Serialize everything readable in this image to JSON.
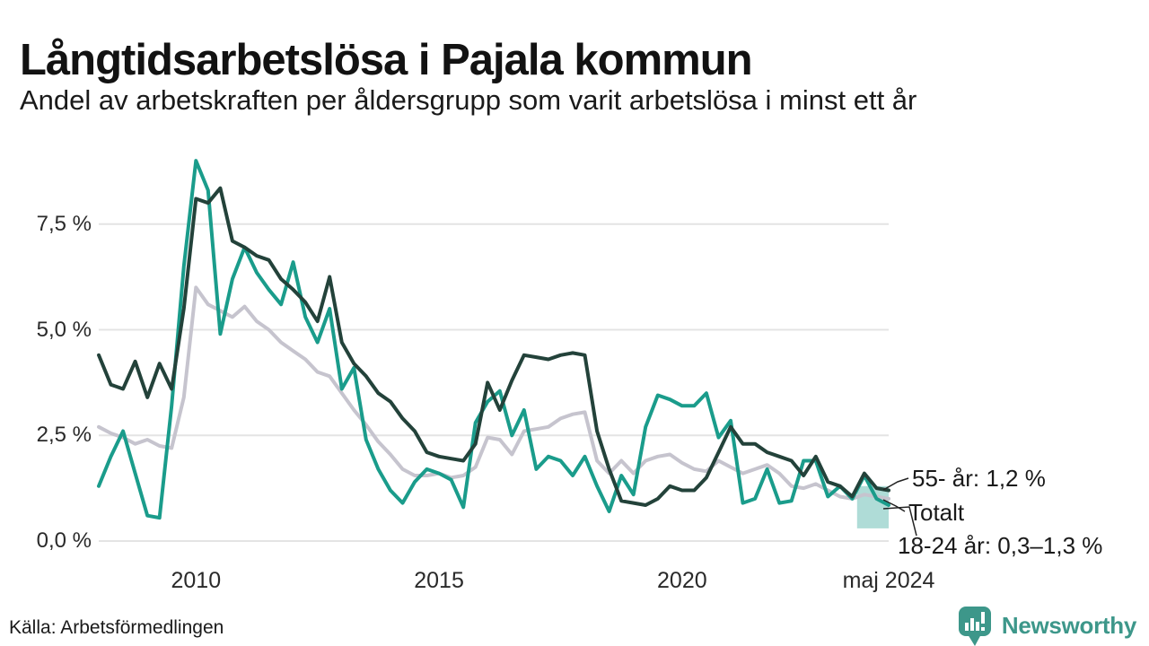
{
  "header": {
    "title": "Långtidsarbetslösa i Pajala kommun",
    "subtitle": "Andel av arbetskraften per åldersgrupp som varit arbetslösa i minst ett år"
  },
  "footer": {
    "source": "Källa: Arbetsförmedlingen",
    "logo": {
      "text": "Newsworthy",
      "icon": "bar-chart-speech-bubble-icon",
      "color": "#3d978a"
    }
  },
  "colors": {
    "accent_teal": "#1a9c8b",
    "dark_green": "#23423a",
    "gray": "#c6c4ce",
    "gridline": "#e4e4e4",
    "band_fill": "#1a9c8b"
  },
  "chart_data": {
    "type": "line",
    "title": "Långtidsarbetslösa i Pajala kommun",
    "subtitle": "Andel av arbetskraften per åldersgrupp som varit arbetslösa i minst ett år",
    "xlabel": "",
    "ylabel": "",
    "grid": "horizontal",
    "legend_position": "end-of-line-annotations",
    "xlim": [
      2008.0,
      2024.25
    ],
    "ylim": [
      0,
      9.3
    ],
    "x_start": 2008.0,
    "x_step": 0.25,
    "x_unit": "year (quarterly samples, monthly series in original)",
    "y_unit": "percent of labour force",
    "yticks": [
      {
        "value": 0,
        "label": "0,0 %"
      },
      {
        "value": 2.5,
        "label": "2,5 %"
      },
      {
        "value": 5,
        "label": "5,0 %"
      },
      {
        "value": 7.5,
        "label": "7,5 %"
      }
    ],
    "xticks": [
      {
        "value": 2010,
        "label": "2010"
      },
      {
        "value": 2015,
        "label": "2015"
      },
      {
        "value": 2020,
        "label": "2020"
      },
      {
        "value": 2024.25,
        "label": "maj 2024"
      }
    ],
    "series": [
      {
        "id": "totalt",
        "name": "Totalt",
        "color": "#c6c4ce",
        "values": [
          2.7,
          2.55,
          2.45,
          2.3,
          2.4,
          2.25,
          2.2,
          3.4,
          6.0,
          5.6,
          5.45,
          5.3,
          5.55,
          5.2,
          5.0,
          4.7,
          4.5,
          4.3,
          4.0,
          3.9,
          3.5,
          3.1,
          2.75,
          2.35,
          2.05,
          1.7,
          1.55,
          1.55,
          1.6,
          1.5,
          1.55,
          1.75,
          2.45,
          2.4,
          2.05,
          2.6,
          2.65,
          2.7,
          2.9,
          3.0,
          3.05,
          1.9,
          1.6,
          1.9,
          1.6,
          1.9,
          2.0,
          2.05,
          1.85,
          1.7,
          1.65,
          1.9,
          1.75,
          1.6,
          1.7,
          1.8,
          1.6,
          1.3,
          1.25,
          1.35,
          1.2,
          1.05,
          1.0,
          1.1,
          1.05,
          1.0
        ]
      },
      {
        "id": "18-24-ar",
        "name": "18-24 år",
        "color": "#1a9c8b",
        "values": [
          1.3,
          2.0,
          2.6,
          1.6,
          0.6,
          0.55,
          3.2,
          6.5,
          9.0,
          8.3,
          4.9,
          6.2,
          6.95,
          6.35,
          5.95,
          5.6,
          6.6,
          5.3,
          4.7,
          5.5,
          3.6,
          4.1,
          2.4,
          1.7,
          1.2,
          0.9,
          1.4,
          1.7,
          1.6,
          1.45,
          0.8,
          2.8,
          3.3,
          3.55,
          2.5,
          3.1,
          1.7,
          2.0,
          1.9,
          1.55,
          2.0,
          1.3,
          0.7,
          1.55,
          1.1,
          2.7,
          3.45,
          3.35,
          3.2,
          3.2,
          3.5,
          2.45,
          2.85,
          0.9,
          1.0,
          1.7,
          0.9,
          0.95,
          1.9,
          1.9,
          1.05,
          1.3,
          1.0,
          1.55,
          1.0,
          0.85
        ]
      },
      {
        "id": "55-ar",
        "name": "55- år",
        "color": "#23423a",
        "values": [
          4.4,
          3.7,
          3.6,
          4.25,
          3.4,
          4.2,
          3.6,
          5.5,
          8.1,
          8.0,
          8.35,
          7.1,
          6.95,
          6.75,
          6.65,
          6.2,
          5.95,
          5.65,
          5.2,
          6.25,
          4.7,
          4.2,
          3.9,
          3.5,
          3.3,
          2.9,
          2.6,
          2.1,
          2.0,
          1.95,
          1.9,
          2.3,
          3.75,
          3.1,
          3.8,
          4.4,
          4.35,
          4.3,
          4.4,
          4.45,
          4.4,
          2.6,
          1.7,
          0.95,
          0.9,
          0.85,
          1.0,
          1.3,
          1.2,
          1.2,
          1.5,
          2.1,
          2.7,
          2.3,
          2.3,
          2.1,
          2.0,
          1.9,
          1.55,
          2.0,
          1.4,
          1.3,
          1.05,
          1.6,
          1.25,
          1.2
        ]
      }
    ],
    "draw_order": [
      0,
      1,
      2
    ],
    "band": {
      "series": "18-24 år",
      "x_from": 2023.6,
      "x_to": 2024.25,
      "y_from": 0.3,
      "y_to": 1.3,
      "color": "#1a9c8b",
      "opacity": 0.35,
      "meaning": "uncertainty range for latest value"
    },
    "annotations": [
      {
        "id": "55-ar",
        "label": "55- år: 1,2 %",
        "target_value": 1.2
      },
      {
        "id": "totalt",
        "label": "Totalt",
        "target_value": 1.0
      },
      {
        "id": "18-24-ar",
        "label": "18-24 år: 0,3–1,3 %",
        "target_value": 0.85
      }
    ]
  }
}
